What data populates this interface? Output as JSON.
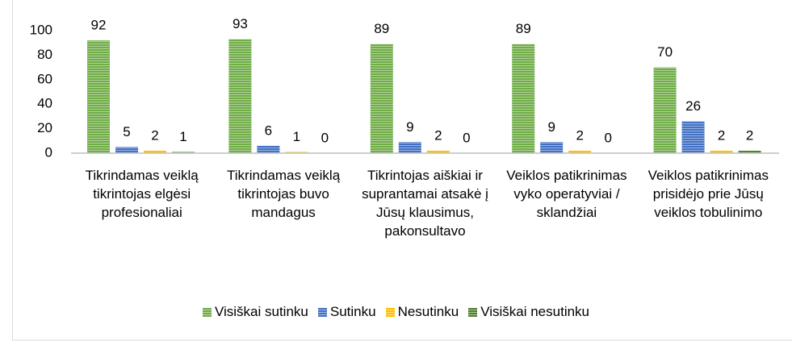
{
  "chart_data": {
    "type": "bar",
    "categories": [
      "Tikrindamas veiklą tikrintojas elgėsi profesionaliai",
      "Tikrindamas veiklą tikrintojas buvo mandagus",
      "Tikrintojas aiškiai ir suprantamai atsakė į Jūsų klausimus, pakonsultavo",
      "Veiklos patikrinimas vyko operatyviai / sklandžiai",
      "Veiklos patikrinimas prisidėjo prie Jūsų veiklos tobulinimo"
    ],
    "series": [
      {
        "name": "Visiškai sutinku",
        "color": "#70ad47",
        "values": [
          92,
          93,
          89,
          89,
          70
        ]
      },
      {
        "name": "Sutinku",
        "color": "#4472c4",
        "values": [
          5,
          6,
          9,
          9,
          26
        ]
      },
      {
        "name": "Nesutinku",
        "color": "#ffc000",
        "values": [
          2,
          1,
          2,
          2,
          2
        ]
      },
      {
        "name": "Visiškai nesutinku",
        "color": "#548235",
        "values": [
          1,
          0,
          0,
          0,
          2
        ]
      }
    ],
    "ylim": [
      0,
      100
    ],
    "yticks": [
      0,
      20,
      40,
      60,
      80,
      100
    ],
    "grid": false,
    "legend": "bottom"
  }
}
